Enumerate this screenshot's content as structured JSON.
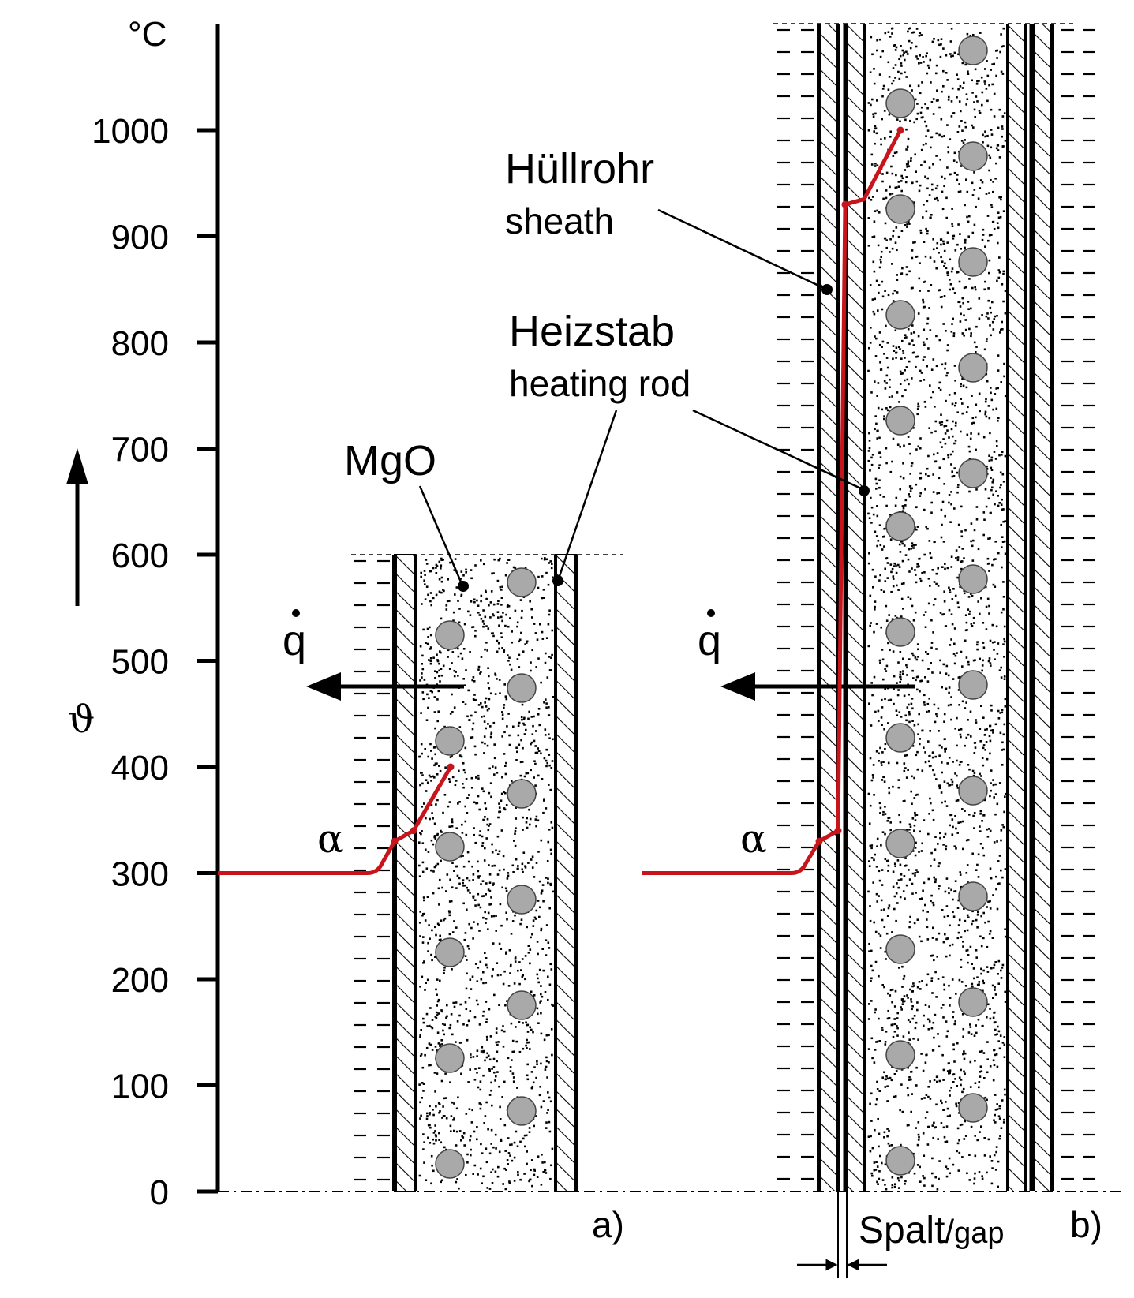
{
  "axis": {
    "unit": "°C",
    "symbol": "ϑ",
    "ticks": [
      "0",
      "100",
      "200",
      "300",
      "400",
      "500",
      "600",
      "700",
      "800",
      "900",
      "1000"
    ]
  },
  "labels": {
    "sheath_de": "Hüllrohr",
    "sheath_en": "sheath",
    "rod_de": "Heizstab",
    "rod_en": "heating rod",
    "insulation": "MgO",
    "heat_flux": "q",
    "heat_transfer": "α",
    "gap_de": "Spalt",
    "gap_sep": "/",
    "gap_en": "gap",
    "panel_a": "a)",
    "panel_b": "b)"
  },
  "colors": {
    "profile": "#c8141b",
    "ink": "#000000",
    "bead": "#a9a9a9"
  },
  "profiles": {
    "a": {
      "fluid_c": 300,
      "sheath_outer_c": 330,
      "sheath_inner_c": 340,
      "core_c": 400
    },
    "b": {
      "fluid_c": 300,
      "sheath_outer_c": 330,
      "sheath_inner_c": 340,
      "gap_top_c": 930,
      "core_c": 1000
    }
  }
}
